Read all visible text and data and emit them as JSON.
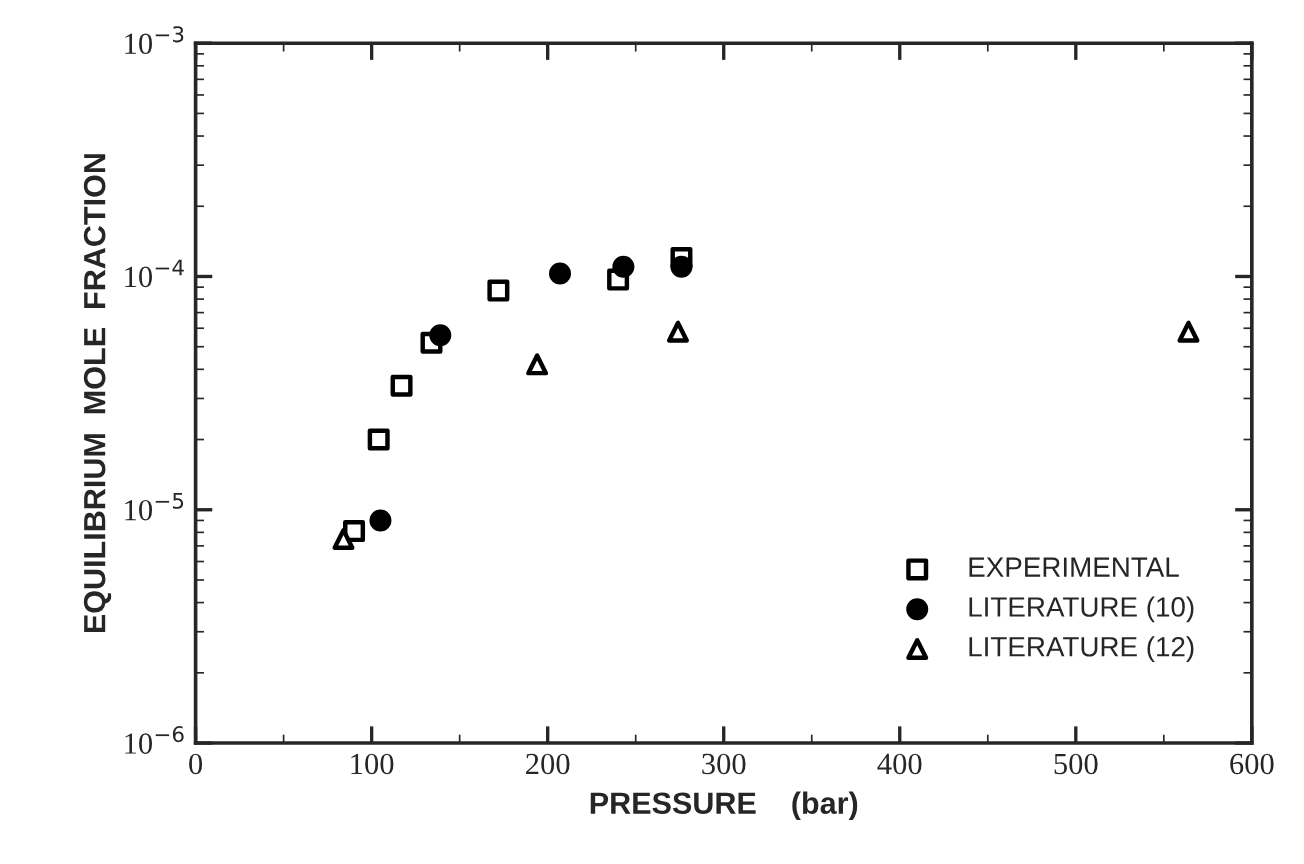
{
  "chart_data": {
    "type": "scatter",
    "xlabel": "PRESSURE    (bar)",
    "ylabel": "EQUILIBRIUM  MOLE  FRACTION",
    "log": "y",
    "grid": false,
    "legend": "bottom right",
    "xlim": [
      0,
      600
    ],
    "xticks": [
      0,
      100,
      200,
      300,
      400,
      500,
      600
    ],
    "ylim": [
      1e-06,
      0.001
    ],
    "yticks": [
      {
        "value": 1e-06,
        "label": "10$^{−6}$"
      },
      {
        "value": 1e-05,
        "label": "10$^{−5}$"
      },
      {
        "value": 0.0001,
        "label": "10$^{−4}$"
      },
      {
        "value": 0.001,
        "label": "10$^{−3}$"
      }
    ],
    "series": [
      {
        "name": "EXPERIMENTAL",
        "color": "#000000",
        "marker": "square",
        "x": [
          90,
          104,
          117,
          134,
          172,
          240,
          276
        ],
        "values": [
          8.1e-06,
          2e-05,
          3.4e-05,
          5.2e-05,
          8.7e-05,
          9.7e-05,
          0.00012
        ]
      },
      {
        "name": "LITERATURE (10)",
        "color": "#000000",
        "marker": "circle",
        "x": [
          105,
          139,
          207,
          243,
          276
        ],
        "values": [
          9e-06,
          5.6e-05,
          0.000103,
          0.00011,
          0.00011
        ]
      },
      {
        "name": "LITERATURE (12)",
        "color": "#000000",
        "marker": "triangle",
        "x": [
          84,
          194,
          274,
          564
        ],
        "values": [
          7.5e-06,
          4.2e-05,
          5.8e-05,
          5.8e-05
        ]
      }
    ]
  }
}
